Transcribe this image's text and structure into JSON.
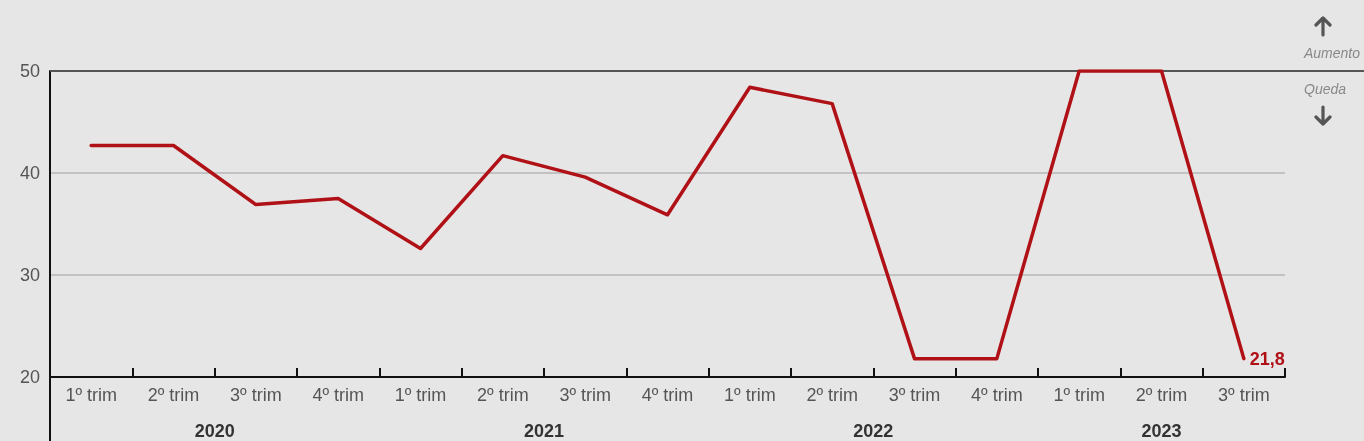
{
  "chart_data": {
    "type": "line",
    "categories": [
      "1º trim",
      "2º trim",
      "3º trim",
      "4º trim",
      "1º trim",
      "2º trim",
      "3º trim",
      "4º trim",
      "1º trim",
      "2º trim",
      "3º trim",
      "4º trim",
      "1º trim",
      "2º trim",
      "3º trim"
    ],
    "values": [
      42.7,
      42.7,
      36.9,
      37.5,
      32.6,
      41.7,
      39.6,
      35.9,
      48.4,
      46.8,
      21.8,
      21.8,
      50,
      50,
      21.8
    ],
    "color": "#b01116",
    "value_labels": [
      null,
      null,
      null,
      null,
      null,
      null,
      null,
      null,
      null,
      null,
      null,
      null,
      null,
      null,
      "21,8"
    ],
    "ylim": [
      20,
      50
    ],
    "yticks": [
      20,
      30,
      40,
      50
    ],
    "grid": "y",
    "marker": "none",
    "line_style": "solid",
    "ref_lines": [
      {
        "axis": "y",
        "value": 50,
        "color": "#555555"
      }
    ],
    "annotations": [
      {
        "text": "Aumento",
        "y": 50
      },
      {
        "text": "Queda",
        "y": 50
      },
      "2020",
      "2021",
      "2022",
      "2023"
    ]
  }
}
